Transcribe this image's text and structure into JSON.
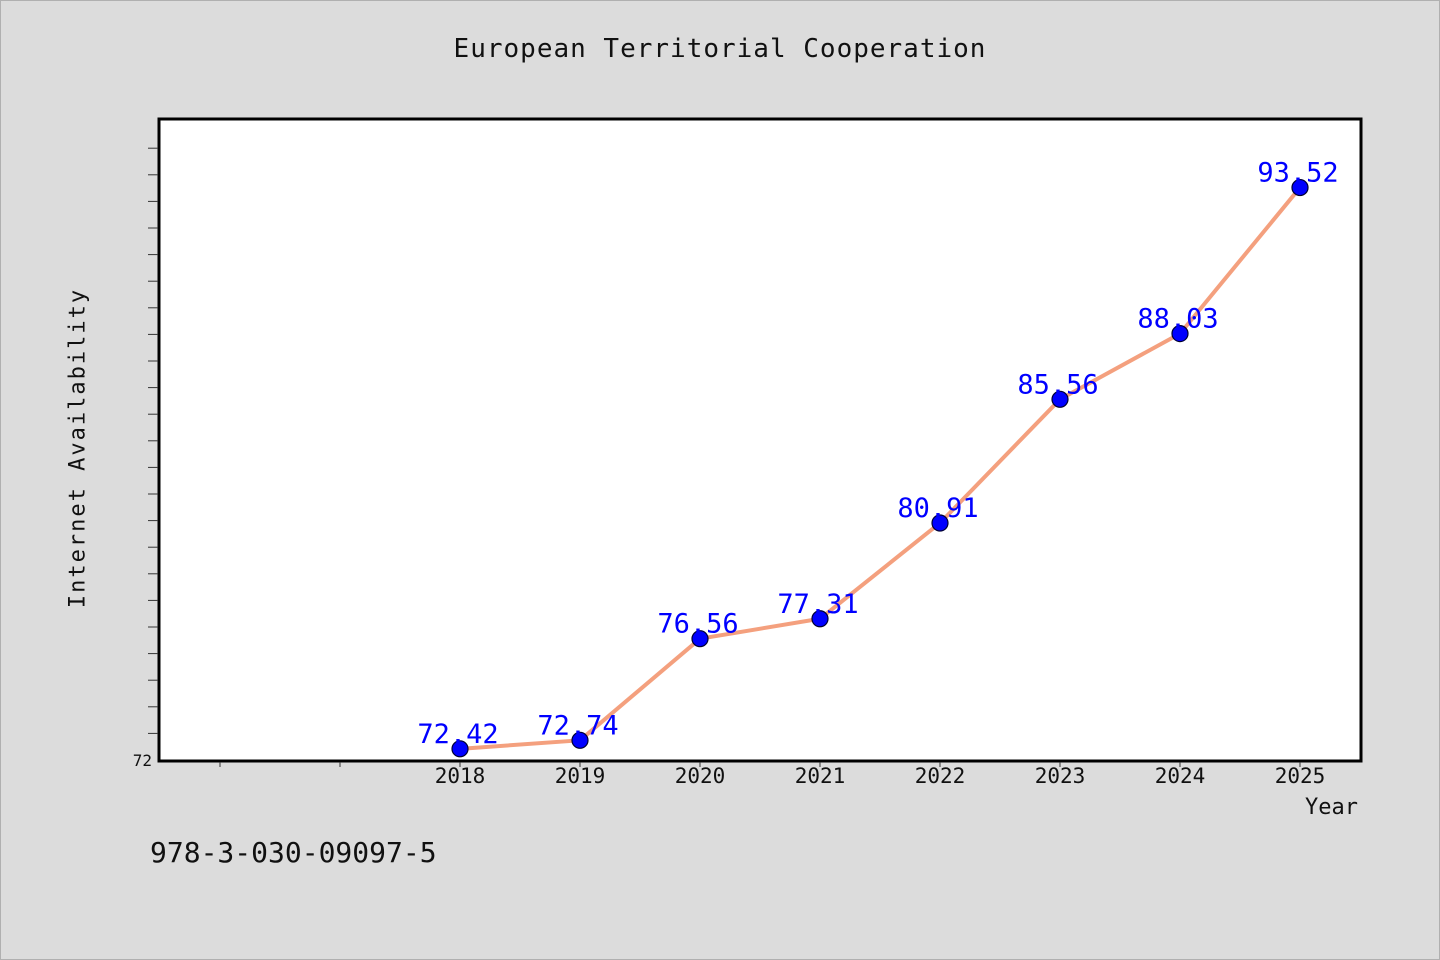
{
  "chart_data": {
    "type": "line",
    "title": "European Territorial Cooperation",
    "xlabel": "Year",
    "ylabel": "Internet Availability",
    "x": [
      "2018",
      "2019",
      "2020",
      "2021",
      "2022",
      "2023",
      "2024",
      "2025"
    ],
    "y_ticks": [
      "72"
    ],
    "ylim": [
      72,
      94
    ],
    "grid": false,
    "series": [
      {
        "values": [
          72.42,
          72.74,
          76.56,
          77.31,
          80.91,
          85.56,
          88.03,
          93.52
        ],
        "labels": [
          "72.42",
          "72.74",
          "76.56",
          "77.31",
          "80.91",
          "85.56",
          "88.03",
          "93.52"
        ]
      }
    ],
    "colors": {
      "line": "#f4a07e",
      "marker": "#0000ff",
      "data_label": "#0000ff"
    }
  },
  "footer": {
    "identifier": "978-3-030-09097-5"
  }
}
